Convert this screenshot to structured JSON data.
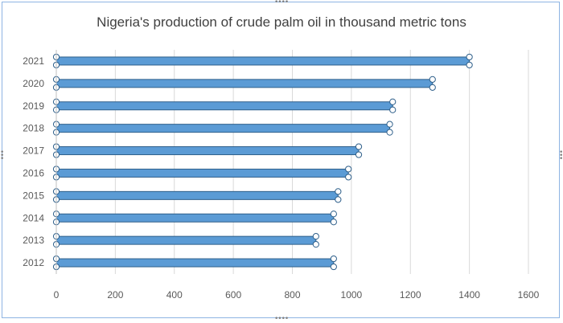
{
  "chart_data": {
    "type": "bar",
    "orientation": "horizontal",
    "title": "Nigeria's production of crude palm oil in thousand  metric tons",
    "xlabel": "",
    "ylabel": "",
    "categories": [
      "2012",
      "2013",
      "2014",
      "2015",
      "2016",
      "2017",
      "2018",
      "2019",
      "2020",
      "2021"
    ],
    "values": [
      940,
      880,
      940,
      955,
      990,
      1025,
      1130,
      1140,
      1275,
      1400
    ],
    "xlim": [
      0,
      1600
    ],
    "xticks": [
      "0",
      "200",
      "400",
      "600",
      "800",
      "1000",
      "1200",
      "1400",
      "1600"
    ],
    "grid": "vertical",
    "legend": "none",
    "colors": {
      "bar_fill": "#5b9bd5",
      "bar_stroke": "#2e5f8a",
      "grid": "#d9d9d9",
      "handle": "#7f7f7f"
    }
  }
}
